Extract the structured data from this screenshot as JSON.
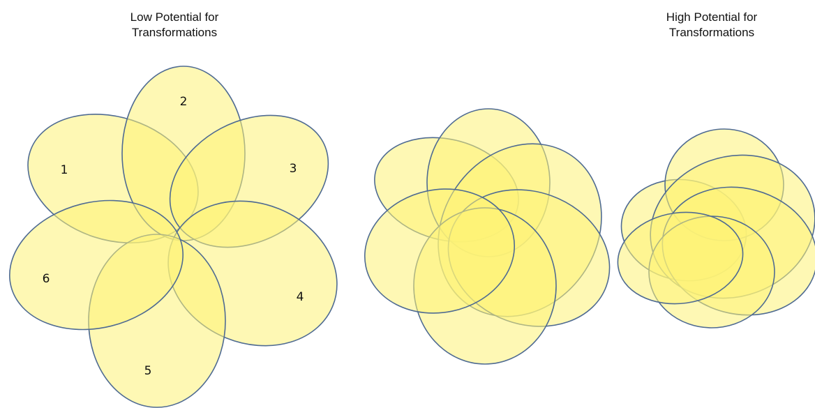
{
  "headings": {
    "left": {
      "line1": "Low Potential for",
      "line2": "Transformations"
    },
    "right": {
      "line1": "High Potential for",
      "line2": "Transformations"
    }
  },
  "petal_labels": [
    "1",
    "2",
    "3",
    "4",
    "5",
    "6"
  ],
  "colors": {
    "petal_fill": "#fdf277",
    "petal_stroke": "#4f6b92"
  }
}
